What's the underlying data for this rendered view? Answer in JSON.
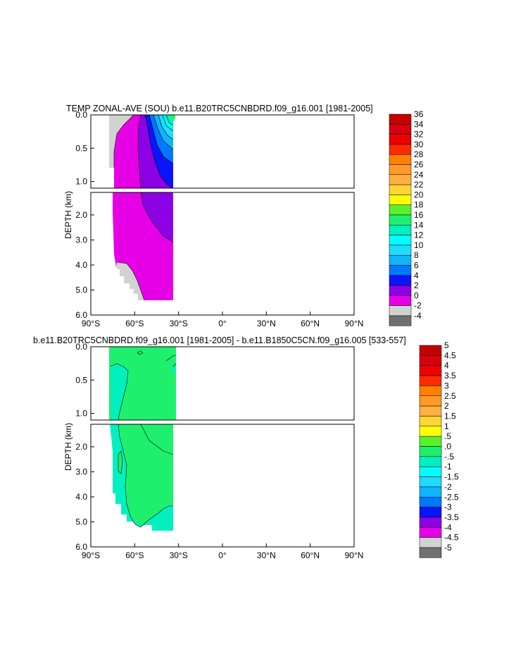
{
  "chart_data": [
    {
      "type": "contour",
      "title": "TEMP ZONAL-AVE (SOU) b.e11.B20TRC5CNBDRD.f09_g16.001 [1981-2005]",
      "ylabel": "DEPTH (km)",
      "x_ticks": [
        "90°S",
        "60°S",
        "30°S",
        "0°",
        "30°N",
        "60°N",
        "90°N"
      ],
      "x_range": [
        -90,
        90
      ],
      "y_ticks_upper": [
        "0.0",
        "0.5",
        "1.0"
      ],
      "y_range_upper": [
        0,
        1.1
      ],
      "y_ticks_lower": [
        "2.0",
        "3.0",
        "4.0",
        "5.0",
        "6.0"
      ],
      "y_range_lower": [
        1.1,
        6.0
      ],
      "levels": [
        {
          "label": "36",
          "color": "#c40000"
        },
        {
          "label": "34",
          "color": "#d8000f"
        },
        {
          "label": "32",
          "color": "#ec0000"
        },
        {
          "label": "30",
          "color": "#ff2a00"
        },
        {
          "label": "28",
          "color": "#ff8000"
        },
        {
          "label": "26",
          "color": "#ff9a28"
        },
        {
          "label": "24",
          "color": "#ffb040"
        },
        {
          "label": "22",
          "color": "#ffd535"
        },
        {
          "label": "20",
          "color": "#ffff00"
        },
        {
          "label": "18",
          "color": "#5af02a"
        },
        {
          "label": "16",
          "color": "#1ef06e"
        },
        {
          "label": "14",
          "color": "#00f0c0"
        },
        {
          "label": "12",
          "color": "#00ffff"
        },
        {
          "label": "10",
          "color": "#1edcff"
        },
        {
          "label": "8",
          "color": "#10b4ff"
        },
        {
          "label": "6",
          "color": "#0078ff"
        },
        {
          "label": "4",
          "color": "#0a14ff"
        },
        {
          "label": "2",
          "color": "#8c00e6"
        },
        {
          "label": "0",
          "color": "#e600e6"
        },
        {
          "label": "-2",
          "color": "#d2d2d2"
        },
        {
          "label": "-4",
          "color": "#707070"
        }
      ]
    },
    {
      "type": "contour",
      "title": "b.e11.B20TRC5CNBDRD.f09_g16.001 [1981-2005] - b.e11.B1850C5CN.f09_g16.005 [533-557]",
      "ylabel": "DEPTH (km)",
      "x_ticks": [
        "90°S",
        "60°S",
        "30°S",
        "0°",
        "30°N",
        "60°N",
        "90°N"
      ],
      "x_range": [
        -90,
        90
      ],
      "y_ticks_upper": [
        "0.0",
        "0.5",
        "1.0"
      ],
      "y_range_upper": [
        0,
        1.1
      ],
      "y_ticks_lower": [
        "2.0",
        "3.0",
        "4.0",
        "5.0",
        "6.0"
      ],
      "y_range_lower": [
        1.1,
        6.0
      ],
      "levels": [
        {
          "label": "5",
          "color": "#c40000"
        },
        {
          "label": "4.5",
          "color": "#d8000f"
        },
        {
          "label": "4",
          "color": "#ec0000"
        },
        {
          "label": "3.5",
          "color": "#ff2a00"
        },
        {
          "label": "3",
          "color": "#ff8000"
        },
        {
          "label": "2.5",
          "color": "#ff9a28"
        },
        {
          "label": "2",
          "color": "#ffb040"
        },
        {
          "label": "1.5",
          "color": "#ffd535"
        },
        {
          "label": "1",
          "color": "#ffff00"
        },
        {
          "label": ".5",
          "color": "#5af02a"
        },
        {
          "label": ".0",
          "color": "#1ef06e"
        },
        {
          "label": "-.5",
          "color": "#00f0c0"
        },
        {
          "label": "-1",
          "color": "#00ffff"
        },
        {
          "label": "-1.5",
          "color": "#1edcff"
        },
        {
          "label": "-2",
          "color": "#10b4ff"
        },
        {
          "label": "-2.5",
          "color": "#0078ff"
        },
        {
          "label": "-3",
          "color": "#0a14ff"
        },
        {
          "label": "-3.5",
          "color": "#8c00e6"
        },
        {
          "label": "-4",
          "color": "#e600e6"
        },
        {
          "label": "-4.5",
          "color": "#d2d2d2"
        },
        {
          "label": "-5",
          "color": "#707070"
        }
      ]
    }
  ]
}
